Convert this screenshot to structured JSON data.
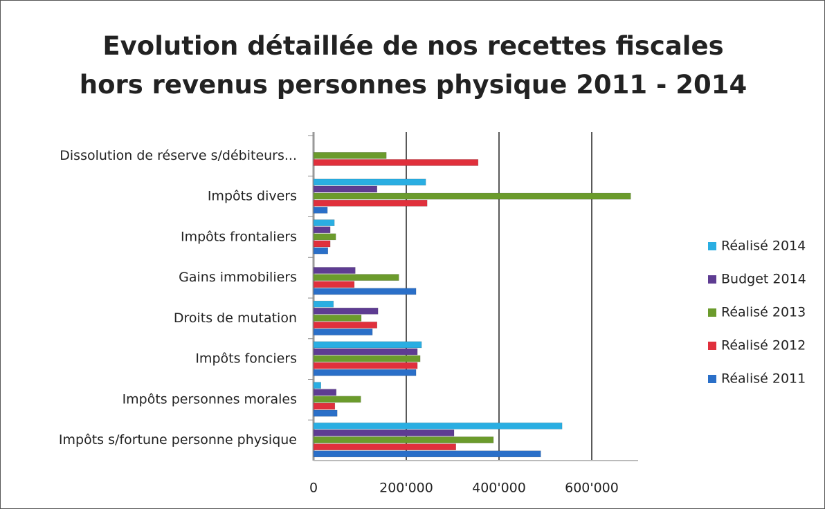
{
  "chart_data": {
    "type": "bar",
    "orientation": "horizontal",
    "title": "Evolution détaillée de nos recettes fiscales hors revenus personnes physique 2011 - 2014",
    "categories": [
      "Dissolution de réserve s/débiteurs...",
      "Impôts divers",
      "Impôts frontaliers",
      "Gains immobiliers",
      "Droits de mutation",
      "Impôts fonciers",
      "Impôts personnes morales",
      "Impôts s/fortune personne physique"
    ],
    "series": [
      {
        "name": "Réalisé 2014",
        "color": "#2aaee2",
        "values": [
          null,
          242000,
          45000,
          null,
          43000,
          233000,
          16000,
          536000
        ]
      },
      {
        "name": "Budget 2014",
        "color": "#5e3c92",
        "values": [
          null,
          137000,
          36000,
          90000,
          139000,
          224000,
          49000,
          303000
        ]
      },
      {
        "name": "Réalisé 2013",
        "color": "#6b9b2c",
        "values": [
          157000,
          684000,
          48000,
          184000,
          103000,
          230000,
          102000,
          388000
        ]
      },
      {
        "name": "Réalisé 2012",
        "color": "#e0303c",
        "values": [
          355000,
          245000,
          36000,
          88000,
          137000,
          224000,
          46000,
          307000
        ]
      },
      {
        "name": "Réalisé 2011",
        "color": "#2a6fc8",
        "values": [
          null,
          30000,
          31000,
          221000,
          127000,
          221000,
          51000,
          490000
        ]
      }
    ],
    "xlim": [
      0,
      700000
    ],
    "xticks": [
      0,
      {
        "value": 200000,
        "label": "200'000"
      },
      {
        "value": 400000,
        "label": "400'000"
      },
      {
        "value": 600000,
        "label": "600'000"
      }
    ],
    "grid": true,
    "legend": "right"
  }
}
